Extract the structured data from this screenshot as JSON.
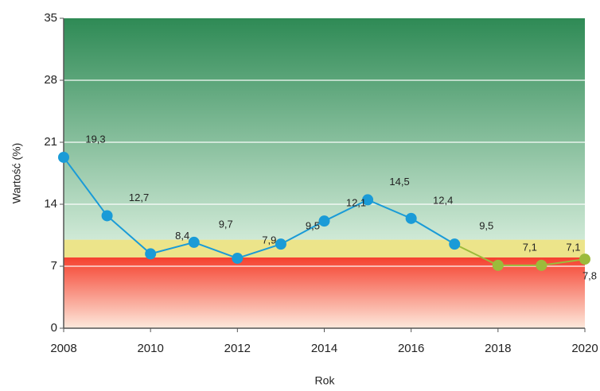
{
  "chart_data": {
    "type": "line",
    "x_label": "Rok",
    "y_label": "Wartość (%)",
    "x": [
      2008,
      2009,
      2010,
      2011,
      2012,
      2013,
      2014,
      2015,
      2016,
      2017,
      2018,
      2019,
      2020
    ],
    "values": [
      19.3,
      12.7,
      8.4,
      9.7,
      7.9,
      9.5,
      12.1,
      14.5,
      12.4,
      9.5,
      7.1,
      7.1,
      7.8
    ],
    "value_labels": [
      "19,3",
      "12,7",
      "8,4",
      "9,7",
      "7,9",
      "9,5",
      "12,1",
      "14,5",
      "12,4",
      "9,5",
      "7,1",
      "7,1",
      "7,8"
    ],
    "point_colors": [
      "#1a9bd7",
      "#1a9bd7",
      "#1a9bd7",
      "#1a9bd7",
      "#1a9bd7",
      "#1a9bd7",
      "#1a9bd7",
      "#1a9bd7",
      "#1a9bd7",
      "#1a9bd7",
      "#9cbb3b",
      "#9cbb3b",
      "#9cbb3b"
    ],
    "bands": [
      {
        "from": 0,
        "to": 8,
        "color_top": "#f5402e",
        "color_bottom": "#fde9dc"
      },
      {
        "from": 8,
        "to": 10,
        "color_top": "#ece48a",
        "color_bottom": "#ece48a"
      },
      {
        "from": 10,
        "to": 35,
        "color_top": "#2e8a55",
        "color_bottom": "#cfe9d6"
      }
    ],
    "xlim": [
      2008,
      2020
    ],
    "xticks": [
      2008,
      2010,
      2012,
      2014,
      2016,
      2018,
      2020
    ],
    "ylim": [
      0,
      35
    ],
    "yticks": [
      0,
      7,
      14,
      21,
      28,
      35
    ],
    "grid": true
  }
}
